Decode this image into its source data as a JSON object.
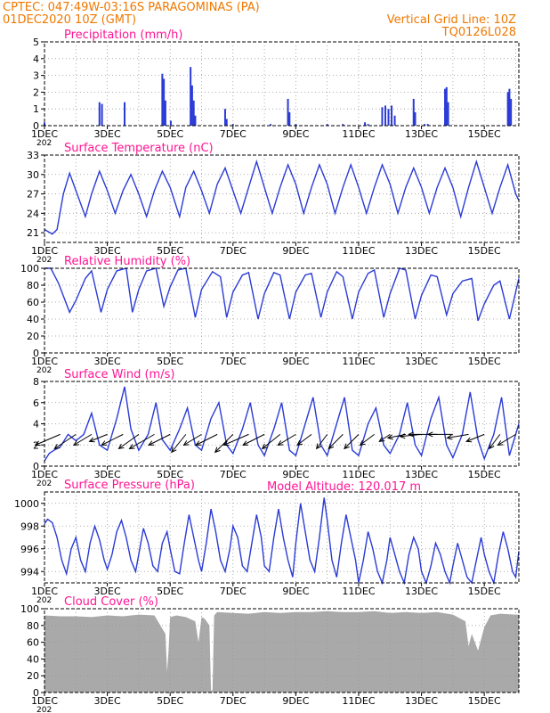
{
  "header": {
    "station": "CPTEC:   047:49W-03:16S   PARAGOMINAS (PA)",
    "run": "01DEC2020 10Z (GMT)",
    "grid_note": "Vertical Grid Line: 10Z",
    "model_code": "TQ0126L028"
  },
  "model_altitude": "Model Altitude: 120.017 m",
  "colors": {
    "header": "#f07800",
    "title": "#ff1493",
    "series": "#2a3bd6",
    "arrows": "#000000",
    "cloud": "#a9a9a9",
    "grid": "#999999"
  },
  "x_axis": {
    "range_days": [
      1,
      16.1
    ],
    "ticks": [
      {
        "day": 1,
        "label": "1DEC"
      },
      {
        "day": 3,
        "label": "3DEC"
      },
      {
        "day": 5,
        "label": "5DEC"
      },
      {
        "day": 7,
        "label": "7DEC"
      },
      {
        "day": 9,
        "label": "9DEC"
      },
      {
        "day": 11,
        "label": "11DEC"
      },
      {
        "day": 13,
        "label": "13DEC"
      },
      {
        "day": 15,
        "label": "15DEC"
      }
    ],
    "gridlines_every_days": 1,
    "clipped_label": "202"
  },
  "chart_data": [
    {
      "id": "precip",
      "type": "bar",
      "title": "Precipitation  (mm/h)",
      "ylim": [
        0,
        5
      ],
      "yticks": [
        0,
        1,
        2,
        3,
        4,
        5
      ],
      "grid": true,
      "x": [
        1.0,
        2.75,
        2.83,
        3.55,
        4.75,
        4.8,
        4.85,
        5.02,
        5.65,
        5.7,
        5.75,
        5.8,
        6.75,
        6.8,
        7.0,
        8.2,
        8.75,
        8.8,
        9.0,
        10.0,
        10.5,
        11.2,
        11.3,
        11.75,
        11.85,
        11.95,
        12.05,
        12.15,
        12.75,
        12.8,
        13.1,
        13.2,
        13.75,
        13.8,
        13.85,
        15.75,
        15.8,
        15.85
      ],
      "y": [
        0.2,
        1.4,
        1.3,
        1.4,
        3.1,
        2.8,
        1.5,
        0.3,
        3.5,
        2.4,
        1.5,
        0.6,
        1.0,
        0.4,
        0.1,
        0.1,
        1.6,
        0.8,
        0.1,
        0.1,
        0.1,
        0.2,
        0.1,
        1.1,
        1.2,
        1.0,
        1.2,
        0.6,
        1.6,
        0.8,
        0.1,
        0.1,
        2.2,
        2.3,
        1.4,
        2.0,
        2.2,
        1.6
      ]
    },
    {
      "id": "temp",
      "type": "line",
      "title": "Surface Temperature (nC)",
      "ylim": [
        19.5,
        33
      ],
      "yticks": [
        21,
        24,
        27,
        30,
        33
      ],
      "grid": true,
      "x": [
        1.0,
        1.25,
        1.4,
        1.6,
        1.8,
        2.0,
        2.3,
        2.5,
        2.75,
        3.0,
        3.25,
        3.5,
        3.75,
        4.0,
        4.25,
        4.5,
        4.75,
        5.0,
        5.3,
        5.5,
        5.75,
        6.0,
        6.25,
        6.5,
        6.75,
        7.0,
        7.25,
        7.5,
        7.75,
        8.0,
        8.25,
        8.5,
        8.75,
        9.0,
        9.25,
        9.5,
        9.75,
        10.0,
        10.25,
        10.5,
        10.75,
        11.0,
        11.25,
        11.5,
        11.75,
        12.0,
        12.25,
        12.5,
        12.75,
        13.0,
        13.25,
        13.5,
        13.75,
        14.0,
        14.25,
        14.5,
        14.75,
        15.0,
        15.25,
        15.5,
        15.75,
        16.0,
        16.1
      ],
      "y": [
        21.5,
        20.8,
        21.5,
        27.0,
        30.2,
        27.5,
        23.5,
        27.0,
        30.5,
        27.5,
        24.0,
        27.5,
        30.0,
        27.0,
        23.5,
        27.5,
        30.5,
        28.0,
        23.5,
        28.0,
        30.5,
        27.5,
        24.0,
        28.5,
        31.0,
        27.5,
        24.0,
        28.0,
        32.0,
        28.0,
        24.0,
        28.0,
        31.5,
        28.5,
        24.0,
        28.0,
        31.5,
        28.5,
        24.0,
        28.0,
        31.5,
        28.0,
        24.0,
        28.0,
        31.5,
        28.5,
        24.0,
        28.0,
        31.0,
        28.0,
        24.0,
        28.0,
        31.0,
        28.0,
        23.5,
        28.0,
        32.0,
        28.0,
        24.0,
        28.0,
        31.5,
        27.0,
        26.0
      ]
    },
    {
      "id": "rh",
      "type": "line",
      "title": "Relative Humidity (%)",
      "ylim": [
        0,
        100
      ],
      "yticks": [
        0,
        20,
        40,
        60,
        80,
        100
      ],
      "grid": true,
      "x": [
        1.0,
        1.2,
        1.45,
        1.8,
        2.0,
        2.3,
        2.5,
        2.8,
        3.0,
        3.3,
        3.6,
        3.8,
        4.0,
        4.25,
        4.55,
        4.8,
        5.0,
        5.25,
        5.5,
        5.8,
        6.0,
        6.35,
        6.6,
        6.8,
        7.0,
        7.3,
        7.5,
        7.8,
        8.0,
        8.3,
        8.5,
        8.8,
        9.0,
        9.3,
        9.5,
        9.8,
        10.0,
        10.3,
        10.5,
        10.8,
        11.0,
        11.3,
        11.5,
        11.8,
        12.0,
        12.3,
        12.5,
        12.8,
        13.0,
        13.3,
        13.5,
        13.8,
        14.0,
        14.3,
        14.6,
        14.8,
        15.0,
        15.3,
        15.5,
        15.8,
        16.1
      ],
      "y": [
        100,
        100,
        82,
        48,
        62,
        88,
        97,
        48,
        75,
        97,
        100,
        48,
        75,
        97,
        100,
        55,
        78,
        98,
        100,
        42,
        75,
        96,
        90,
        42,
        72,
        92,
        95,
        40,
        70,
        95,
        92,
        40,
        72,
        92,
        94,
        42,
        72,
        96,
        90,
        40,
        72,
        94,
        98,
        42,
        70,
        100,
        98,
        40,
        68,
        92,
        90,
        45,
        70,
        85,
        88,
        38,
        58,
        80,
        85,
        40,
        88
      ]
    },
    {
      "id": "wind",
      "type": "line",
      "title": "Surface Wind (m/s)",
      "ylim": [
        0,
        8
      ],
      "yticks": [
        0,
        2,
        4,
        6,
        8
      ],
      "grid": true,
      "x": [
        1.0,
        1.15,
        1.3,
        1.5,
        1.75,
        2.0,
        2.25,
        2.5,
        2.75,
        3.0,
        3.3,
        3.55,
        3.75,
        4.0,
        4.3,
        4.55,
        4.75,
        5.0,
        5.3,
        5.55,
        5.8,
        6.0,
        6.3,
        6.55,
        6.8,
        7.0,
        7.3,
        7.55,
        7.8,
        8.0,
        8.3,
        8.55,
        8.8,
        9.0,
        9.3,
        9.55,
        9.8,
        10.0,
        10.3,
        10.55,
        10.8,
        11.0,
        11.3,
        11.55,
        11.8,
        12.0,
        12.3,
        12.55,
        12.8,
        13.0,
        13.3,
        13.55,
        13.8,
        14.0,
        14.3,
        14.55,
        14.8,
        15.0,
        15.3,
        15.55,
        15.8,
        16.1
      ],
      "y": [
        0.5,
        1.2,
        1.5,
        1.8,
        3.0,
        2.4,
        3.0,
        5.0,
        2.0,
        1.5,
        4.5,
        7.5,
        3.5,
        1.5,
        3.0,
        6.0,
        2.5,
        1.5,
        3.5,
        5.5,
        2.0,
        1.5,
        4.5,
        6.0,
        2.0,
        1.2,
        3.5,
        6.0,
        2.0,
        1.0,
        3.5,
        6.0,
        1.5,
        1.0,
        4.0,
        6.5,
        2.0,
        1.0,
        4.0,
        6.5,
        1.5,
        1.0,
        4.0,
        5.5,
        2.0,
        1.2,
        3.0,
        6.0,
        2.0,
        1.0,
        4.5,
        6.5,
        2.0,
        0.8,
        3.0,
        7.0,
        2.5,
        0.7,
        3.0,
        6.5,
        1.0,
        4.0
      ],
      "arrows": {
        "x": [
          1.5,
          2.0,
          2.5,
          3.0,
          3.5,
          4.0,
          4.5,
          5.0,
          5.5,
          6.0,
          6.5,
          7.0,
          7.5,
          8.0,
          8.5,
          9.0,
          9.5,
          10.0,
          10.5,
          11.0,
          11.5,
          12.0,
          12.5,
          13.0,
          13.5,
          14.0,
          14.5,
          15.0,
          15.5,
          16.0
        ],
        "u": [
          -3.5,
          -3.0,
          -2.5,
          -2.5,
          -3.0,
          -2.8,
          -3.5,
          -3.0,
          -2.0,
          -2.5,
          -3.0,
          -2.5,
          -3.5,
          -3.0,
          -2.5,
          -2.5,
          -2.0,
          -1.5,
          -2.0,
          -2.0,
          -2.0,
          -1.5,
          -2.5,
          -3.0,
          -4.0,
          -3.5,
          -3.0,
          -2.5,
          -1.5,
          -2.5
        ],
        "v": [
          -1.5,
          -2.0,
          -1.5,
          -1.0,
          -1.5,
          -2.0,
          -2.0,
          -1.5,
          -2.5,
          -1.5,
          -1.5,
          -2.5,
          -1.5,
          -1.5,
          -2.0,
          -1.5,
          -1.5,
          -2.0,
          -2.0,
          -2.0,
          -1.5,
          -1.0,
          -0.5,
          -0.3,
          0.0,
          0.0,
          -0.5,
          -1.0,
          -2.0,
          -1.5
        ]
      }
    },
    {
      "id": "pressure",
      "type": "line",
      "title": "Surface Pressure (hPa)",
      "ylim": [
        993,
        1001
      ],
      "yticks": [
        994,
        996,
        998,
        1000
      ],
      "grid": true,
      "x": [
        1.0,
        1.1,
        1.25,
        1.4,
        1.55,
        1.7,
        1.85,
        2.0,
        2.15,
        2.3,
        2.45,
        2.6,
        2.75,
        2.9,
        3.0,
        3.15,
        3.3,
        3.45,
        3.6,
        3.75,
        3.9,
        4.0,
        4.15,
        4.3,
        4.45,
        4.6,
        4.75,
        4.9,
        5.0,
        5.15,
        5.3,
        5.45,
        5.6,
        5.75,
        5.9,
        6.0,
        6.15,
        6.3,
        6.45,
        6.6,
        6.75,
        6.9,
        7.0,
        7.15,
        7.3,
        7.45,
        7.6,
        7.75,
        7.9,
        8.0,
        8.15,
        8.3,
        8.45,
        8.6,
        8.75,
        8.9,
        9.0,
        9.15,
        9.3,
        9.45,
        9.6,
        9.75,
        9.9,
        10.0,
        10.15,
        10.3,
        10.45,
        10.6,
        10.75,
        10.9,
        11.0,
        11.15,
        11.3,
        11.45,
        11.6,
        11.75,
        11.9,
        12.0,
        12.15,
        12.3,
        12.45,
        12.6,
        12.75,
        12.9,
        13.0,
        13.15,
        13.3,
        13.45,
        13.6,
        13.75,
        13.9,
        14.0,
        14.15,
        14.3,
        14.45,
        14.6,
        14.75,
        14.9,
        15.0,
        15.15,
        15.3,
        15.45,
        15.6,
        15.75,
        15.9,
        16.0,
        16.1
      ],
      "y": [
        998.2,
        998.6,
        998.3,
        997.0,
        995.0,
        993.8,
        996.0,
        997.0,
        995.0,
        994.0,
        996.5,
        998.0,
        996.8,
        995.0,
        994.2,
        995.5,
        997.5,
        998.5,
        997.0,
        995.0,
        994.0,
        995.5,
        997.8,
        996.5,
        994.5,
        994.0,
        996.5,
        997.5,
        996.0,
        994.0,
        993.8,
        996.5,
        999.0,
        997.0,
        995.0,
        994.0,
        996.5,
        999.5,
        997.5,
        995.0,
        994.0,
        996.0,
        998.0,
        997.0,
        994.5,
        994.0,
        996.5,
        999.0,
        997.0,
        994.5,
        994.0,
        997.0,
        999.5,
        997.0,
        995.0,
        993.5,
        996.5,
        1000.0,
        997.5,
        995.0,
        994.0,
        997.0,
        1000.5,
        998.5,
        995.0,
        993.5,
        996.5,
        999.0,
        997.0,
        995.0,
        993.0,
        995.0,
        997.5,
        996.0,
        994.0,
        992.5,
        995.0,
        997.0,
        995.5,
        994.0,
        993.0,
        995.5,
        997.0,
        996.0,
        994.0,
        992.5,
        994.5,
        996.5,
        995.5,
        994.0,
        993.0,
        994.5,
        996.5,
        995.0,
        993.5,
        993.0,
        995.0,
        997.0,
        995.5,
        994.0,
        993.0,
        995.5,
        997.5,
        996.0,
        994.0,
        993.5,
        995.8
      ]
    },
    {
      "id": "cloud",
      "type": "area",
      "title": "Cloud Cover (%)",
      "ylim": [
        0,
        100
      ],
      "yticks": [
        0,
        20,
        40,
        60,
        80,
        100
      ],
      "grid": true,
      "x": [
        1.0,
        1.5,
        2.0,
        2.5,
        3.0,
        3.5,
        4.0,
        4.5,
        4.85,
        4.9,
        4.95,
        5.0,
        5.2,
        5.5,
        5.8,
        5.9,
        6.0,
        6.1,
        6.25,
        6.3,
        6.35,
        6.4,
        6.5,
        7.0,
        7.5,
        8.0,
        8.5,
        9.0,
        9.5,
        10.0,
        10.5,
        11.0,
        11.5,
        12.0,
        12.5,
        13.0,
        13.5,
        14.0,
        14.4,
        14.5,
        14.6,
        14.8,
        15.0,
        15.2,
        15.5,
        16.0,
        16.1
      ],
      "y": [
        92,
        91,
        91,
        90,
        92,
        91,
        93,
        92,
        70,
        25,
        50,
        90,
        92,
        90,
        85,
        60,
        90,
        88,
        80,
        2,
        3,
        92,
        96,
        95,
        94,
        96,
        95,
        96,
        96,
        97,
        96,
        96,
        97,
        95,
        96,
        95,
        96,
        93,
        85,
        55,
        70,
        50,
        78,
        92,
        94,
        93,
        93
      ]
    }
  ]
}
